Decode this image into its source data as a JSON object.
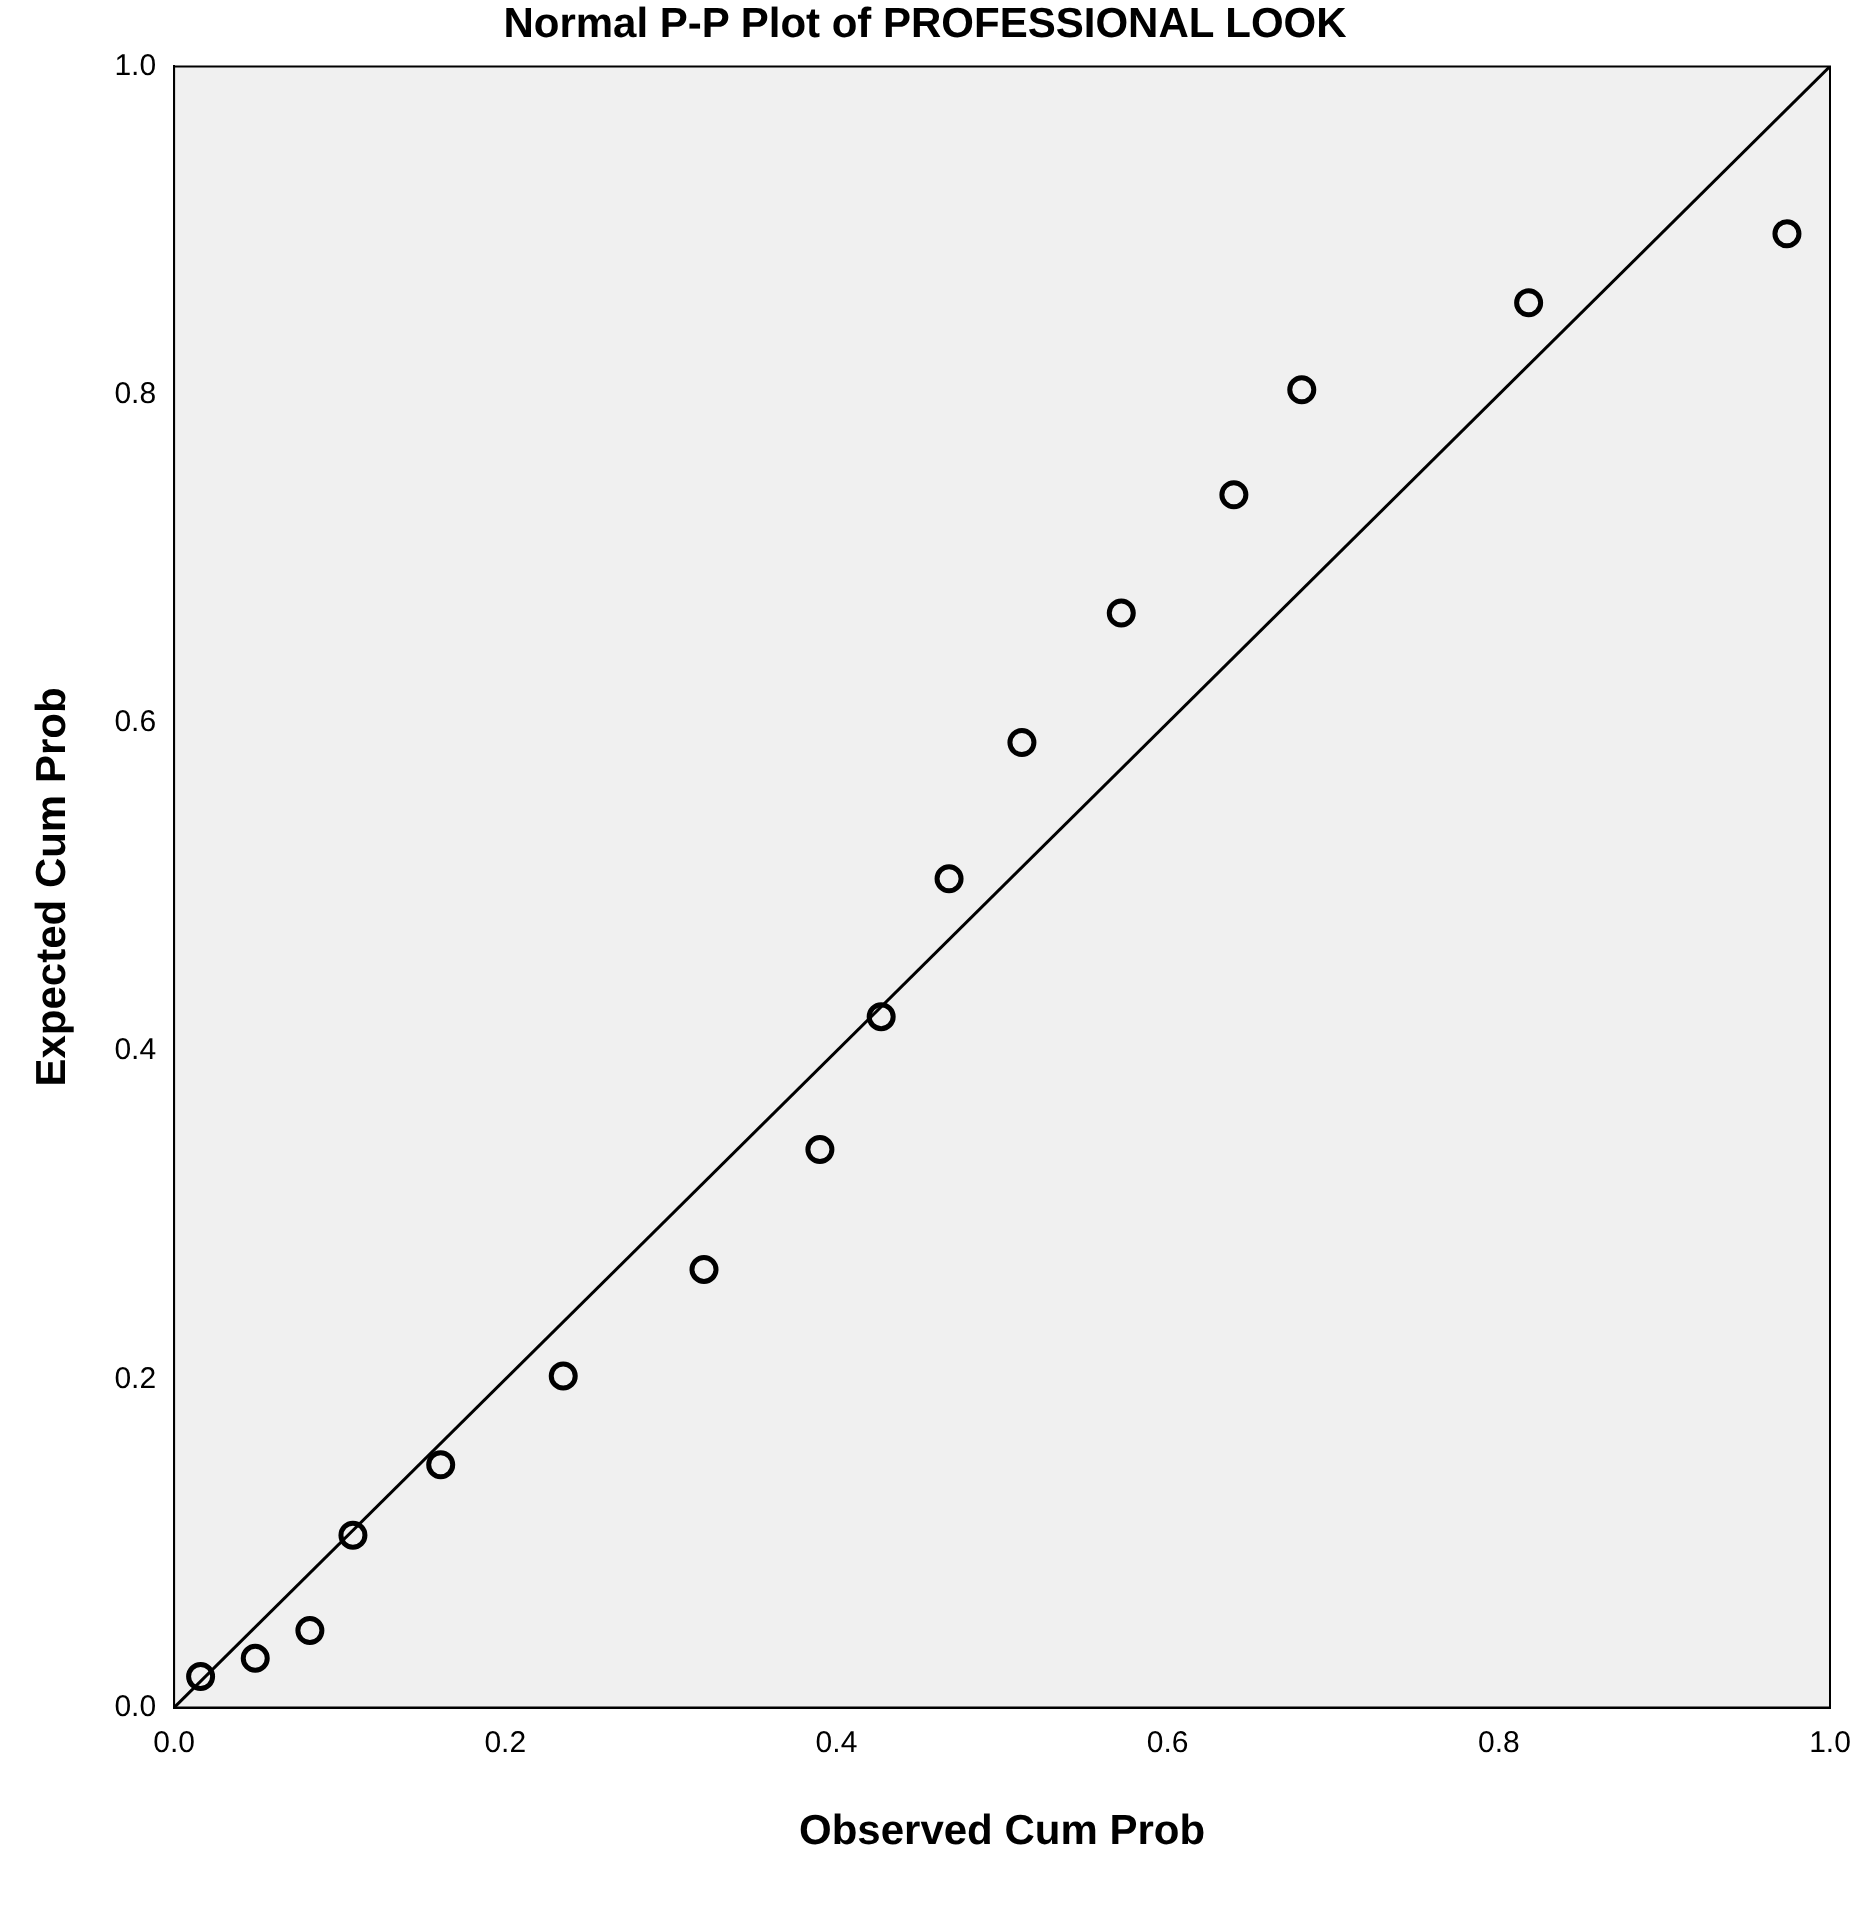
{
  "chart_data": {
    "type": "scatter",
    "title": "Normal P-P Plot of PROFESSIONAL LOOK",
    "xlabel": "Observed Cum Prob",
    "ylabel": "Expected Cum Prob",
    "xlim": [
      0,
      1
    ],
    "ylim": [
      0,
      1
    ],
    "xticks": [
      {
        "value": 0,
        "label": "0.0"
      },
      {
        "value": 0.2,
        "label": "0.2"
      },
      {
        "value": 0.4,
        "label": "0.4"
      },
      {
        "value": 0.6,
        "label": "0.6"
      },
      {
        "value": 0.8,
        "label": "0.8"
      },
      {
        "value": 1,
        "label": "1.0"
      }
    ],
    "yticks": [
      {
        "value": 0,
        "label": "0.0"
      },
      {
        "value": 0.2,
        "label": "0.2"
      },
      {
        "value": 0.4,
        "label": "0.4"
      },
      {
        "value": 0.6,
        "label": "0.6"
      },
      {
        "value": 0.8,
        "label": "0.8"
      },
      {
        "value": 1,
        "label": "1.0"
      }
    ],
    "grid": false,
    "legend": false,
    "marker": "circle",
    "series": [
      {
        "color": "#000000",
        "x": [
          0.016,
          0.049,
          0.082,
          0.108,
          0.161,
          0.235,
          0.32,
          0.39,
          0.427,
          0.468,
          0.512,
          0.572,
          0.64,
          0.681,
          0.818,
          0.974
        ],
        "values": [
          0.019,
          0.03,
          0.047,
          0.105,
          0.148,
          0.202,
          0.267,
          0.34,
          0.421,
          0.505,
          0.588,
          0.667,
          0.739,
          0.803,
          0.856,
          0.898
        ]
      },
      {
        "type": "line",
        "marker": "none",
        "color": "#000000",
        "x": [
          0,
          1
        ],
        "values": [
          0,
          1
        ]
      }
    ]
  }
}
